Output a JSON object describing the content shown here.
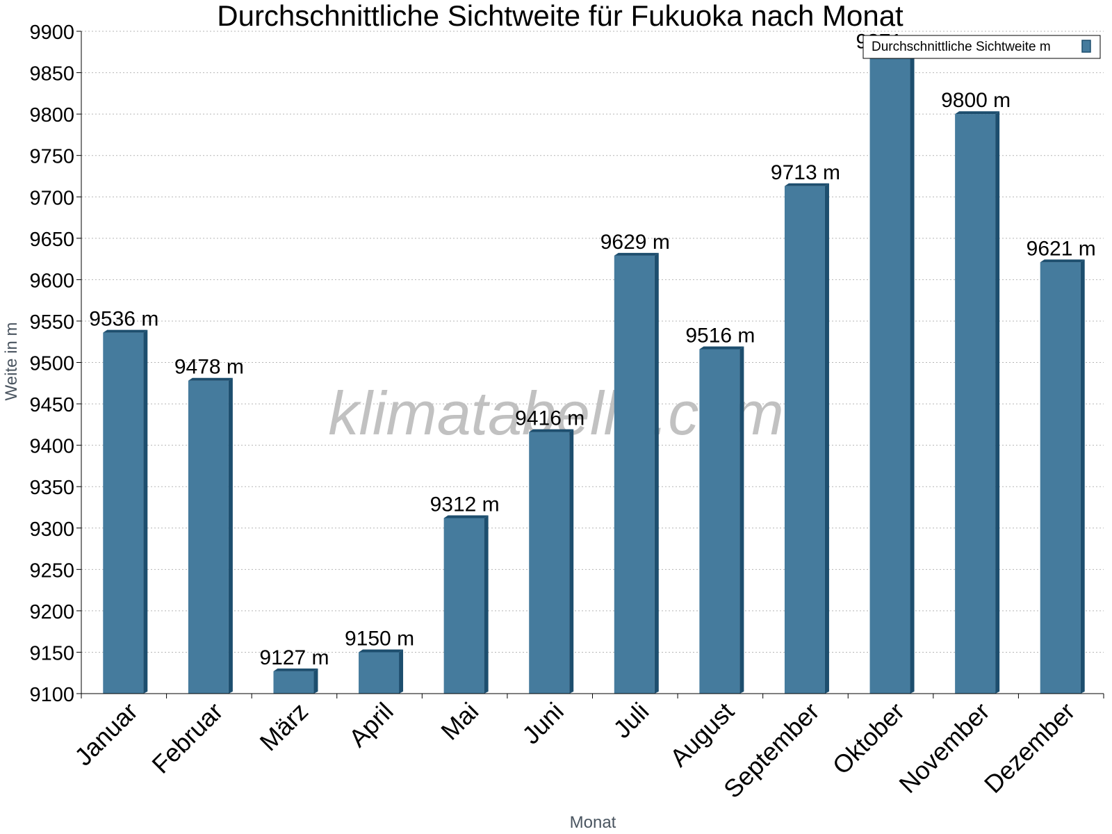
{
  "chart_data": {
    "type": "bar",
    "title": "Durchschnittliche Sichtweite für Fukuoka nach Monat",
    "xlabel": "Monat",
    "ylabel": "Weite in m",
    "ylim": [
      9100,
      9900
    ],
    "y_ticks": [
      9100,
      9150,
      9200,
      9250,
      9300,
      9350,
      9400,
      9450,
      9500,
      9550,
      9600,
      9650,
      9700,
      9750,
      9800,
      9850,
      9900
    ],
    "categories": [
      "Januar",
      "Februar",
      "März",
      "April",
      "Mai",
      "Juni",
      "Juli",
      "August",
      "September",
      "Oktober",
      "November",
      "Dezember"
    ],
    "series": [
      {
        "name": "Durchschnittliche Sichtweite m",
        "values": [
          9536,
          9478,
          9127,
          9150,
          9312,
          9416,
          9629,
          9516,
          9713,
          9871,
          9800,
          9621
        ],
        "value_labels": [
          "9536 m",
          "9478 m",
          "9127 m",
          "9150 m",
          "9312 m",
          "9416 m",
          "9629 m",
          "9516 m",
          "9713 m",
          "9871 m",
          "9800 m",
          "9621 m"
        ]
      }
    ],
    "grid": true,
    "legend_position": "top-right",
    "bar_color": "#457b9d",
    "bar_side_color": "#1d4e6e",
    "watermark": "klimatabelle.com"
  }
}
